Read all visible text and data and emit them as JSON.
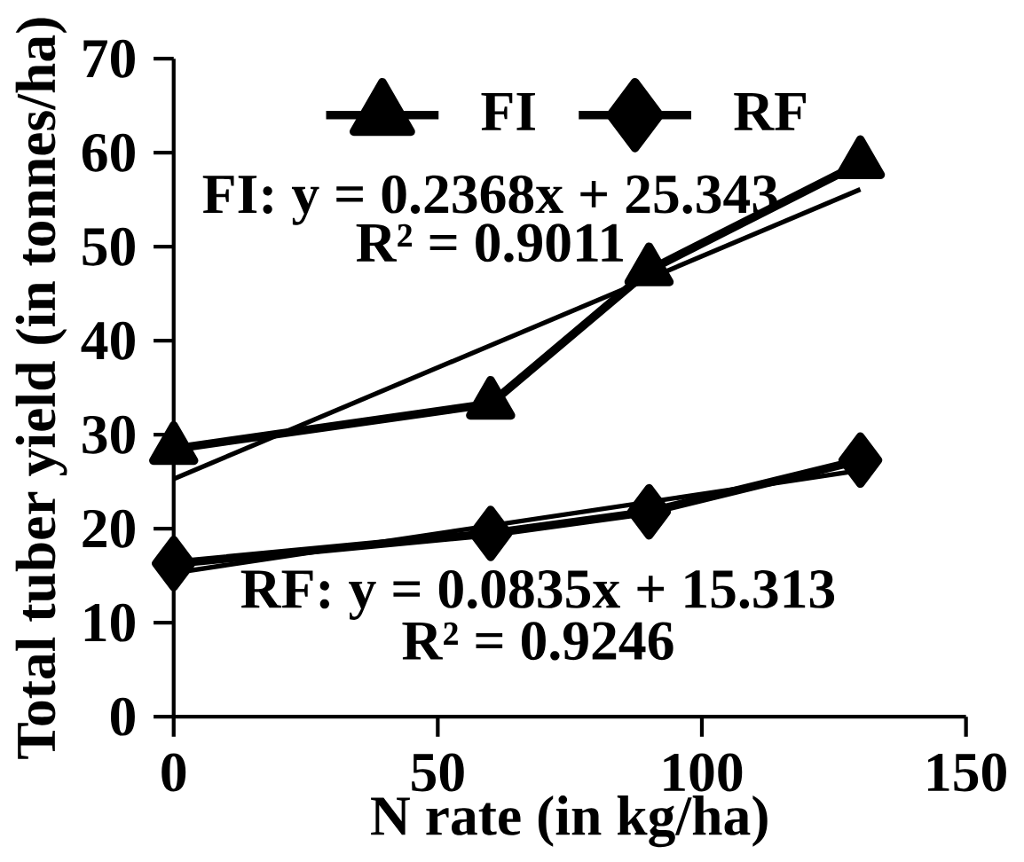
{
  "chart_data": {
    "type": "line",
    "xlabel": "N rate (in kg/ha)",
    "ylabel": "Total tuber yield (in tonnes/ha)",
    "xlim": [
      0,
      150
    ],
    "xticks": [
      0,
      50,
      100,
      150
    ],
    "ylim": [
      0,
      70
    ],
    "yticks": [
      0,
      10,
      20,
      30,
      40,
      50,
      60,
      70
    ],
    "legend": "top",
    "grid": false,
    "series": [
      {
        "name": "FI",
        "color": "#000000",
        "marker": "triangle",
        "x": [
          0,
          60,
          90,
          130
        ],
        "values": [
          28.5,
          33.3,
          47.5,
          58.9
        ]
      },
      {
        "name": "RF",
        "color": "#000000",
        "marker": "diamond",
        "x": [
          0,
          60,
          90,
          130
        ],
        "values": [
          16.3,
          19.5,
          21.8,
          27.3
        ]
      },
      {
        "color": "#000000",
        "marker": "none",
        "x": [
          0,
          130
        ],
        "values": [
          25.3,
          56.1
        ]
      },
      {
        "color": "#000000",
        "marker": "none",
        "x": [
          0,
          130
        ],
        "values": [
          15.3,
          26.2
        ]
      }
    ],
    "annotations": [
      "FI: y = 0.2368x + 25.343",
      "R² = 0.9011",
      "RF: y = 0.0835x + 15.313",
      "R² = 0.9246"
    ]
  }
}
